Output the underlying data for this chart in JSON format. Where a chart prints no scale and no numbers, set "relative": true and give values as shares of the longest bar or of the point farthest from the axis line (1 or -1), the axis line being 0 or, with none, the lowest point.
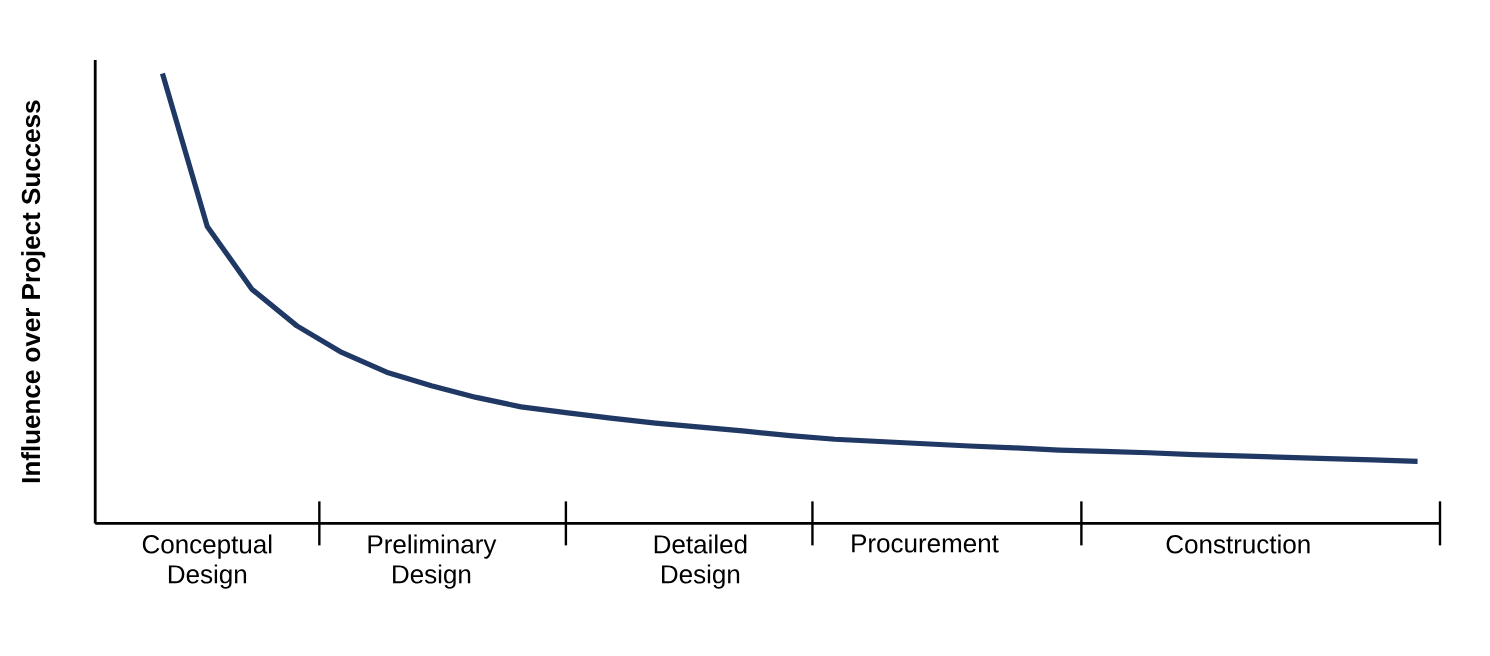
{
  "chart_data": {
    "type": "line",
    "relative": true,
    "ylabel": "Influence over Project Success",
    "categories": [
      null,
      null,
      "Conceptual Design",
      null,
      null,
      null,
      null,
      "Preliminary Design",
      null,
      null,
      null,
      null,
      null,
      "Detailed Design",
      null,
      null,
      null,
      null,
      "Procurement",
      null,
      null,
      null,
      null,
      null,
      null,
      "Construction",
      null,
      null,
      null,
      null
    ],
    "tick_labels": "x",
    "marker": "none",
    "line_style": "solid",
    "series": [
      {
        "color": "#203864",
        "values": [
          null,
          1.0,
          0.66,
          0.52,
          0.439,
          0.38,
          0.336,
          0.306,
          0.28,
          0.259,
          0.246,
          0.234,
          0.223,
          0.214,
          0.205,
          0.195,
          0.187,
          0.182,
          0.177,
          0.172,
          0.168,
          0.163,
          0.16,
          0.157,
          0.153,
          0.15,
          0.147,
          0.144,
          0.141,
          0.138
        ]
      }
    ]
  }
}
